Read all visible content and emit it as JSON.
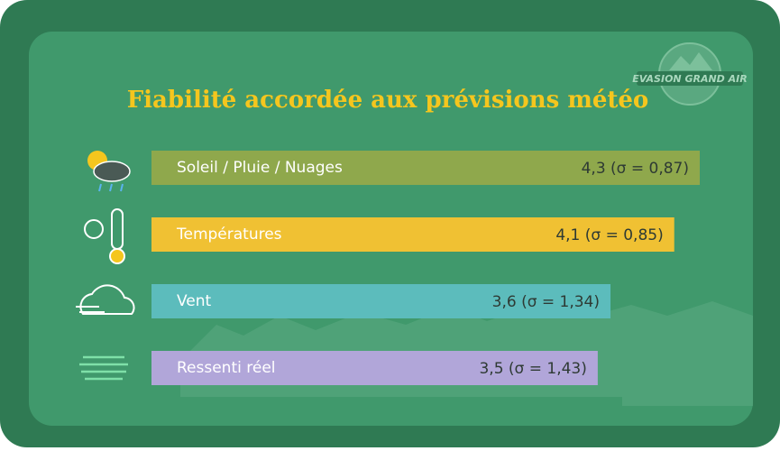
{
  "chart_data": {
    "type": "bar",
    "orientation": "horizontal",
    "title": "Fiabilité accordée aux prévisions météo",
    "logo": "EVASION GRAND AIR",
    "categories": [
      "Soleil / Pluie / Nuages",
      "Températures",
      "Vent",
      "Ressenti réel"
    ],
    "values": [
      4.3,
      4.1,
      3.6,
      3.5
    ],
    "value_labels": [
      "4,3 (σ = 0,87)",
      "4,1 (σ = 0,85)",
      "3,6 (σ = 1,34)",
      "3,5 (σ = 1,43)"
    ],
    "colors": [
      "#8fa84c",
      "#f0c133",
      "#5cbcbc",
      "#b1a6d9"
    ]
  }
}
